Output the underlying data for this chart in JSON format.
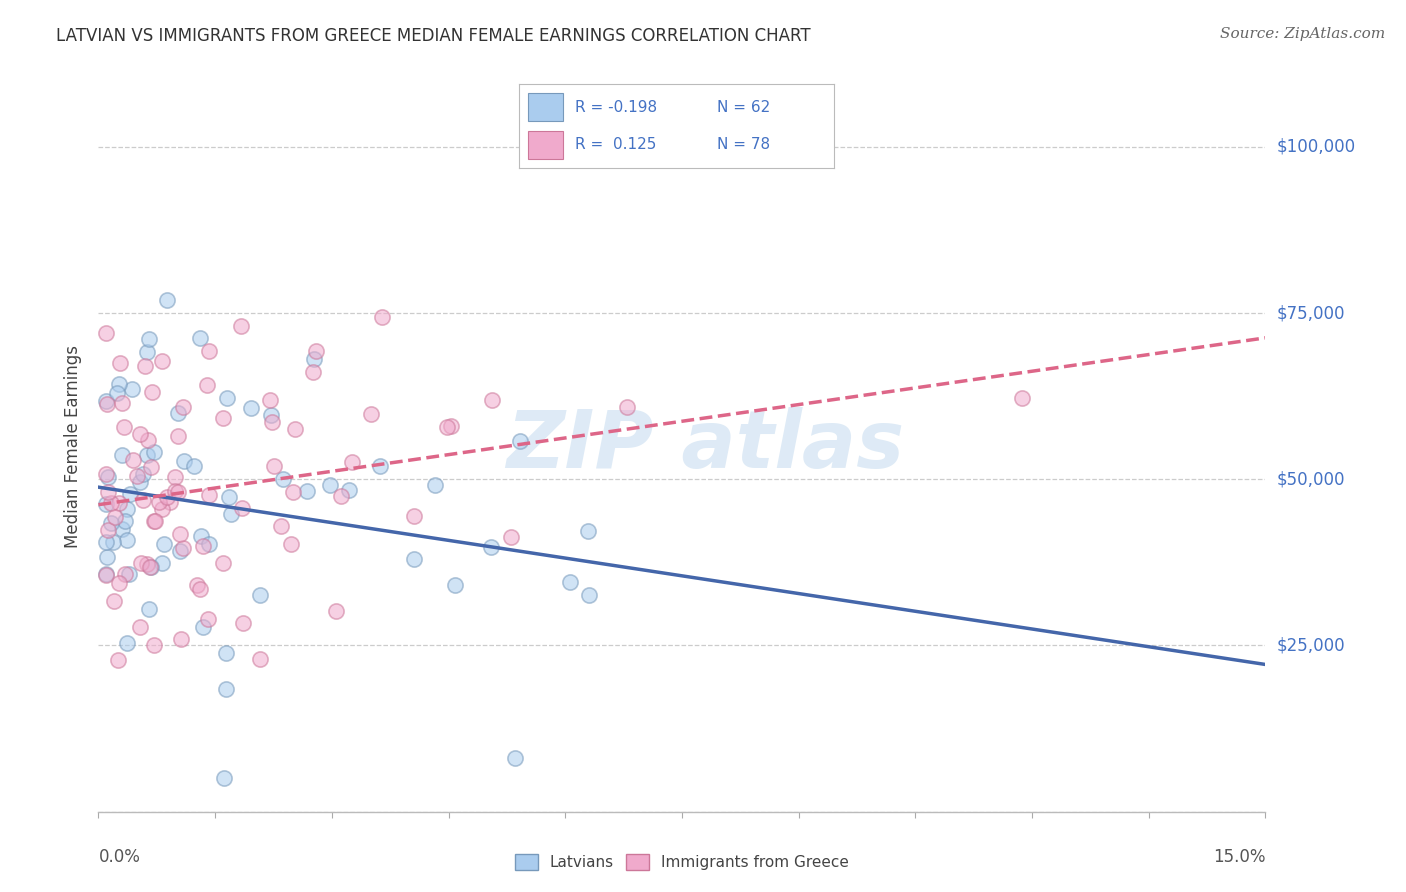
{
  "title": "LATVIAN VS IMMIGRANTS FROM GREECE MEDIAN FEMALE EARNINGS CORRELATION CHART",
  "source": "Source: ZipAtlas.com",
  "ylabel": "Median Female Earnings",
  "xlim": [
    0.0,
    0.15
  ],
  "ylim": [
    0,
    110000
  ],
  "yticks": [
    0,
    25000,
    50000,
    75000,
    100000
  ],
  "latvian_face_color": "#aaccee",
  "latvian_edge_color": "#7799bb",
  "greek_face_color": "#f0aacc",
  "greek_edge_color": "#cc7799",
  "latvian_line_color": "#4466aa",
  "greek_line_color": "#dd6688",
  "legend_latvian_R": "-0.198",
  "legend_latvian_N": "62",
  "legend_greek_R": "0.125",
  "legend_greek_N": "78",
  "background_color": "#ffffff",
  "grid_color": "#cccccc",
  "title_color": "#333333",
  "ytick_color": "#4472c4",
  "watermark_color": "#c8ddf0",
  "dot_size": 120,
  "dot_alpha": 0.55,
  "latvian_trend_intercept": 48500,
  "latvian_trend_slope": -75000,
  "greek_trend_intercept": 47500,
  "greek_trend_slope": 40000
}
